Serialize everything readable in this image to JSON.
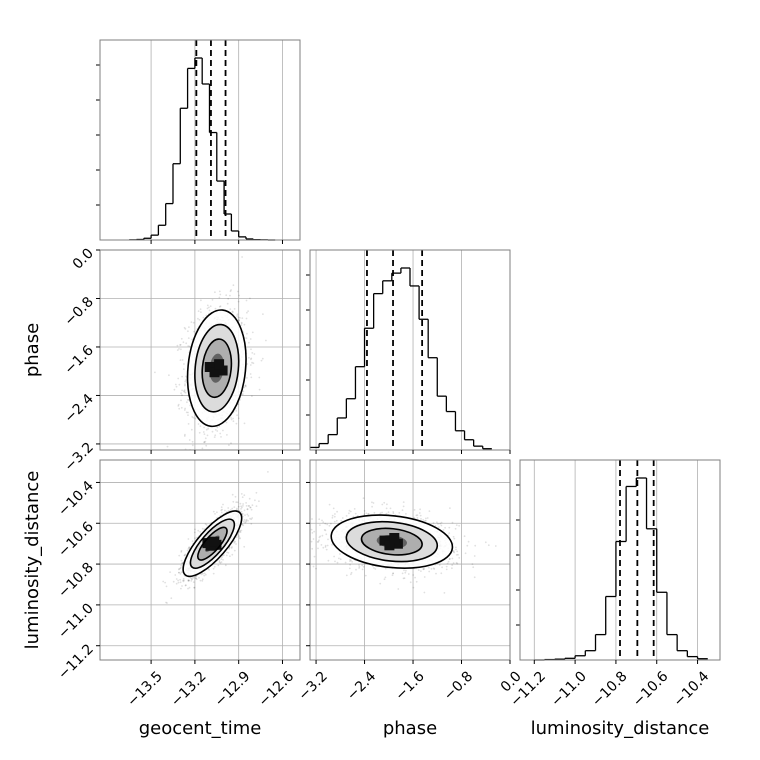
{
  "chart_data": {
    "type": "corner",
    "parameters": [
      "geocent_time",
      "phase",
      "luminosity_distance"
    ],
    "axis_labels": {
      "geocent_time": "geocent_time",
      "phase": "phase",
      "luminosity_distance": "luminosity_distance"
    },
    "ranges": {
      "geocent_time": [
        -13.85,
        -12.48
      ],
      "phase": [
        -3.3,
        0.0
      ],
      "luminosity_distance": [
        -11.27,
        -10.29
      ]
    },
    "ticks": {
      "geocent_time": [
        -13.5,
        -13.2,
        -12.9,
        -12.6
      ],
      "phase": [
        -3.2,
        -2.4,
        -1.6,
        -0.8,
        0.0
      ],
      "luminosity_distance": [
        -11.2,
        -11.0,
        -10.8,
        -10.6,
        -10.4
      ]
    },
    "tick_labels": {
      "geocent_time": [
        "−13.5",
        "−13.2",
        "−12.9",
        "−12.6"
      ],
      "phase": [
        "−3.2",
        "−2.4",
        "−1.6",
        "−0.8",
        "0.0"
      ],
      "luminosity_distance": [
        "−11.2",
        "−11.0",
        "−10.8",
        "−10.6",
        "−10.4"
      ]
    },
    "quantiles": {
      "geocent_time": [
        -13.19,
        -13.09,
        -12.99
      ],
      "phase": [
        -2.36,
        -1.93,
        -1.45
      ],
      "luminosity_distance": [
        -10.78,
        -10.695,
        -10.615
      ]
    },
    "histograms": {
      "geocent_time": {
        "edges": [
          -13.65,
          -13.6,
          -13.55,
          -13.5,
          -13.45,
          -13.4,
          -13.35,
          -13.3,
          -13.25,
          -13.2,
          -13.15,
          -13.1,
          -13.05,
          -13.0,
          -12.95,
          -12.9,
          -12.85,
          -12.8,
          -12.75,
          -12.7,
          -12.65
        ],
        "counts": [
          1,
          3,
          10,
          28,
          85,
          210,
          440,
          760,
          990,
          1050,
          900,
          620,
          340,
          150,
          52,
          18,
          6,
          2,
          1,
          0
        ]
      },
      "phase": {
        "edges": [
          -3.3,
          -3.15,
          -3.0,
          -2.85,
          -2.7,
          -2.55,
          -2.4,
          -2.25,
          -2.1,
          -1.95,
          -1.8,
          -1.65,
          -1.5,
          -1.35,
          -1.2,
          -1.05,
          -0.9,
          -0.75,
          -0.6,
          -0.45,
          -0.3
        ],
        "counts": [
          2,
          5,
          12,
          25,
          40,
          65,
          95,
          122,
          132,
          138,
          142,
          128,
          102,
          72,
          42,
          30,
          15,
          8,
          3,
          1
        ]
      },
      "luminosity_distance": {
        "edges": [
          -11.2,
          -11.15,
          -11.1,
          -11.05,
          -11.0,
          -10.95,
          -10.9,
          -10.85,
          -10.8,
          -10.75,
          -10.7,
          -10.65,
          -10.6,
          -10.55,
          -10.5,
          -10.45,
          -10.4,
          -10.35
        ],
        "counts": [
          0,
          1,
          2,
          4,
          10,
          22,
          60,
          150,
          280,
          410,
          430,
          310,
          160,
          60,
          22,
          8,
          3
        ]
      }
    },
    "pairs": [
      {
        "x": "geocent_time",
        "y": "phase",
        "center": [
          -13.05,
          -1.95
        ],
        "sd": [
          0.1,
          0.48
        ],
        "correlation": 0.15,
        "contour_sigma_levels": [
          0.5,
          1.0,
          1.5,
          2.0
        ]
      },
      {
        "x": "geocent_time",
        "y": "luminosity_distance",
        "center": [
          -13.08,
          -10.7
        ],
        "sd": [
          0.1,
          0.08
        ],
        "correlation": 0.78,
        "contour_sigma_levels": [
          0.5,
          1.0,
          1.5,
          2.0
        ]
      },
      {
        "x": "phase",
        "y": "luminosity_distance",
        "center": [
          -1.95,
          -10.69
        ],
        "sd": [
          0.5,
          0.065
        ],
        "correlation": -0.2,
        "contour_sigma_levels": [
          0.5,
          1.0,
          1.5,
          2.0
        ]
      }
    ],
    "grid": true,
    "colors": {
      "line": "#000000",
      "grid": "#b0b0b0",
      "frame": "#7f7f7f",
      "points": "#000000"
    }
  }
}
